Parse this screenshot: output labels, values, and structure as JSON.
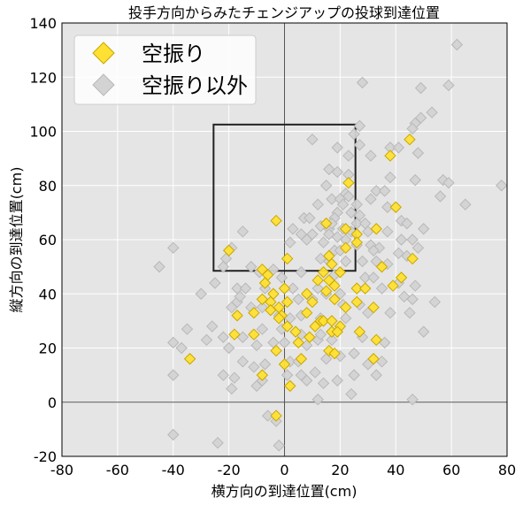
{
  "chart_data": {
    "type": "scatter",
    "title": "投手方向からみたチェンジアップの投球到達位置",
    "xlabel": "横方向の到達位置(cm)",
    "ylabel": "縦方向の到達位置(cm)",
    "xlim": [
      -80,
      80
    ],
    "ylim": [
      -20,
      140
    ],
    "xticks": [
      "-80",
      "-60",
      "-40",
      "-20",
      "0",
      "20",
      "40",
      "60",
      "80"
    ],
    "yticks": [
      "-20",
      "0",
      "20",
      "40",
      "60",
      "80",
      "100",
      "120",
      "140"
    ],
    "grid": true,
    "legend_position": "top-left",
    "strike_zone": {
      "x": [
        -25.5,
        25.5
      ],
      "y": [
        48.5,
        102.5
      ]
    },
    "reference_lines": {
      "x": 0,
      "y": 0
    },
    "background_color": "#e5e5e5",
    "series": [
      {
        "name": "空振り以外",
        "marker": "diamond",
        "color": "#d3d3d3",
        "edge_color": "#b8b8b8",
        "points": [
          [
            62,
            132
          ],
          [
            28,
            118
          ],
          [
            59,
            117
          ],
          [
            49,
            116
          ],
          [
            53,
            107
          ],
          [
            49,
            105
          ],
          [
            47,
            103
          ],
          [
            46,
            101
          ],
          [
            27,
            102
          ],
          [
            25,
            99
          ],
          [
            10,
            97
          ],
          [
            27,
            95
          ],
          [
            19,
            94
          ],
          [
            38,
            94
          ],
          [
            41,
            94
          ],
          [
            48,
            92
          ],
          [
            23,
            91
          ],
          [
            31,
            91
          ],
          [
            16,
            86
          ],
          [
            19,
            85
          ],
          [
            23,
            84
          ],
          [
            38,
            83
          ],
          [
            47,
            82
          ],
          [
            57,
            82
          ],
          [
            59,
            81
          ],
          [
            78,
            80
          ],
          [
            33,
            78
          ],
          [
            36,
            78
          ],
          [
            22,
            77
          ],
          [
            23,
            76
          ],
          [
            31,
            75
          ],
          [
            17,
            75
          ],
          [
            20,
            75
          ],
          [
            21,
            73
          ],
          [
            26,
            73
          ],
          [
            56,
            76
          ],
          [
            65,
            73
          ],
          [
            37,
            72
          ],
          [
            19,
            70
          ],
          [
            24,
            70
          ],
          [
            27,
            69
          ],
          [
            7,
            68
          ],
          [
            9,
            68
          ],
          [
            18,
            68
          ],
          [
            26,
            66
          ],
          [
            29,
            66
          ],
          [
            42,
            67
          ],
          [
            44,
            66
          ],
          [
            3,
            64
          ],
          [
            13,
            65
          ],
          [
            16,
            64
          ],
          [
            21,
            64
          ],
          [
            24,
            63
          ],
          [
            30,
            63
          ],
          [
            37,
            63
          ],
          [
            50,
            64
          ],
          [
            6,
            62
          ],
          [
            10,
            62
          ],
          [
            16,
            62
          ],
          [
            19,
            61
          ],
          [
            22,
            60
          ],
          [
            42,
            60
          ],
          [
            46,
            60
          ],
          [
            8,
            60
          ],
          [
            2,
            59
          ],
          [
            14,
            59
          ],
          [
            26,
            58
          ],
          [
            31,
            58
          ],
          [
            34,
            57
          ],
          [
            48,
            57
          ],
          [
            -15,
            63
          ],
          [
            -19,
            57
          ],
          [
            18,
            56
          ],
          [
            20,
            56
          ],
          [
            32,
            56
          ],
          [
            -21,
            53
          ],
          [
            41,
            55
          ],
          [
            44,
            54
          ],
          [
            13,
            53
          ],
          [
            16,
            52
          ],
          [
            22,
            52
          ],
          [
            28,
            52
          ],
          [
            33,
            52
          ],
          [
            37,
            51
          ],
          [
            -22,
            50
          ],
          [
            -45,
            50
          ],
          [
            -40,
            57
          ],
          [
            -12,
            50
          ],
          [
            -4,
            49
          ],
          [
            -9,
            48
          ],
          [
            6,
            48
          ],
          [
            18,
            47
          ],
          [
            -1,
            46
          ],
          [
            29,
            46
          ],
          [
            32,
            46
          ],
          [
            -25,
            44
          ],
          [
            -30,
            40
          ],
          [
            -17,
            42
          ],
          [
            -14,
            42
          ],
          [
            -7,
            42
          ],
          [
            3,
            42
          ],
          [
            12,
            42
          ],
          [
            15,
            40
          ],
          [
            20,
            40
          ],
          [
            35,
            42
          ],
          [
            41,
            44
          ],
          [
            47,
            43
          ],
          [
            -17,
            37
          ],
          [
            -12,
            35
          ],
          [
            -8,
            35
          ],
          [
            5,
            38
          ],
          [
            10,
            38
          ],
          [
            21,
            36
          ],
          [
            27,
            36
          ],
          [
            43,
            39
          ],
          [
            46,
            38
          ],
          [
            54,
            37
          ],
          [
            -2,
            32
          ],
          [
            2,
            31
          ],
          [
            6,
            32
          ],
          [
            13,
            31
          ],
          [
            22,
            31
          ],
          [
            30,
            33
          ],
          [
            38,
            33
          ],
          [
            45,
            33
          ],
          [
            -35,
            27
          ],
          [
            -28,
            23
          ],
          [
            -22,
            24
          ],
          [
            -15,
            24
          ],
          [
            -10,
            21
          ],
          [
            -4,
            22
          ],
          [
            0,
            22
          ],
          [
            8,
            21
          ],
          [
            12,
            23
          ],
          [
            17,
            23
          ],
          [
            28,
            24
          ],
          [
            36,
            22
          ],
          [
            50,
            26
          ],
          [
            -40,
            22
          ],
          [
            -20,
            20
          ],
          [
            -15,
            15
          ],
          [
            -11,
            13
          ],
          [
            -7,
            14
          ],
          [
            2,
            15
          ],
          [
            5,
            15
          ],
          [
            15,
            16
          ],
          [
            20,
            17
          ],
          [
            25,
            18
          ],
          [
            30,
            14
          ],
          [
            35,
            15
          ],
          [
            -40,
            10
          ],
          [
            -22,
            10
          ],
          [
            -18,
            9
          ],
          [
            -8,
            8
          ],
          [
            1,
            10
          ],
          [
            6,
            10
          ],
          [
            11,
            11
          ],
          [
            14,
            7
          ],
          [
            19,
            8
          ],
          [
            25,
            10
          ],
          [
            33,
            10
          ],
          [
            -19,
            5
          ],
          [
            -10,
            6
          ],
          [
            12,
            1
          ],
          [
            24,
            3
          ],
          [
            46,
            1
          ],
          [
            -40,
            -12
          ],
          [
            -24,
            -15
          ],
          [
            -2,
            -16
          ],
          [
            -3,
            -7
          ],
          [
            -6,
            -5
          ],
          [
            8,
            8
          ],
          [
            13,
            25
          ],
          [
            6,
            25
          ],
          [
            -1,
            27
          ],
          [
            -8,
            27
          ],
          [
            -16,
            39
          ],
          [
            17,
            66
          ],
          [
            12,
            73
          ],
          [
            15,
            80
          ],
          [
            -37,
            20
          ],
          [
            -19,
            35
          ],
          [
            -26,
            28
          ]
        ]
      },
      {
        "name": "空振り",
        "marker": "diamond",
        "color": "#ffe033",
        "edge_color": "#c8a700",
        "points": [
          [
            45,
            97
          ],
          [
            38,
            91
          ],
          [
            23,
            81
          ],
          [
            40,
            72
          ],
          [
            -3,
            67
          ],
          [
            15,
            66
          ],
          [
            22,
            64
          ],
          [
            33,
            64
          ],
          [
            26,
            62
          ],
          [
            26,
            59
          ],
          [
            22,
            57
          ],
          [
            -20,
            56
          ],
          [
            16,
            54
          ],
          [
            1,
            53
          ],
          [
            17,
            51
          ],
          [
            35,
            50
          ],
          [
            -8,
            49
          ],
          [
            14,
            48
          ],
          [
            20,
            48
          ],
          [
            46,
            53
          ],
          [
            42,
            46
          ],
          [
            -6,
            47
          ],
          [
            12,
            45
          ],
          [
            16,
            45
          ],
          [
            18,
            43
          ],
          [
            -7,
            44
          ],
          [
            0,
            42
          ],
          [
            -4,
            40
          ],
          [
            8,
            40
          ],
          [
            15,
            41
          ],
          [
            26,
            42
          ],
          [
            29,
            42
          ],
          [
            39,
            43
          ],
          [
            -8,
            38
          ],
          [
            -5,
            37
          ],
          [
            1,
            37
          ],
          [
            10,
            37
          ],
          [
            18,
            38
          ],
          [
            -2,
            35
          ],
          [
            22,
            35
          ],
          [
            32,
            35
          ],
          [
            26,
            37
          ],
          [
            -11,
            33
          ],
          [
            -5,
            34
          ],
          [
            -1,
            32
          ],
          [
            8,
            33
          ],
          [
            13,
            30
          ],
          [
            14,
            30
          ],
          [
            17,
            30
          ],
          [
            20,
            28
          ],
          [
            -17,
            32
          ],
          [
            -2,
            31
          ],
          [
            11,
            28
          ],
          [
            1,
            28
          ],
          [
            -11,
            25
          ],
          [
            4,
            26
          ],
          [
            -18,
            25
          ],
          [
            17,
            26
          ],
          [
            9,
            24
          ],
          [
            19,
            26
          ],
          [
            27,
            26
          ],
          [
            5,
            22
          ],
          [
            33,
            23
          ],
          [
            16,
            19
          ],
          [
            18,
            18
          ],
          [
            -3,
            19
          ],
          [
            6,
            16
          ],
          [
            0,
            14
          ],
          [
            32,
            16
          ],
          [
            -34,
            16
          ],
          [
            -8,
            10
          ],
          [
            2,
            6
          ],
          [
            -3,
            -5
          ]
        ]
      }
    ]
  }
}
